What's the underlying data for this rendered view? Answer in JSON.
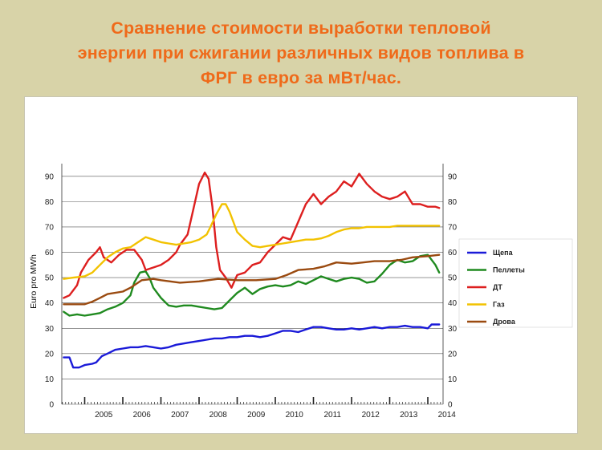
{
  "slide": {
    "title_lines": [
      "Сравнение стоимости выработки тепловой",
      "энергии при сжигании различных видов топлива в",
      "ФРГ в евро за мВт/час."
    ]
  },
  "chart_data": {
    "type": "line",
    "title": "",
    "xlabel": "",
    "ylabel": "Euro pro MWh",
    "xlim": [
      2004.4,
      2014.4
    ],
    "ylim": [
      0,
      95
    ],
    "yticks": [
      0,
      10,
      20,
      30,
      40,
      50,
      60,
      70,
      80,
      90
    ],
    "xtick_labels": [
      "2005",
      "2006",
      "2007",
      "2008",
      "2009",
      "2010",
      "2011",
      "2012",
      "2013",
      "2014"
    ],
    "grid": "horizontal",
    "legend_position": "right",
    "series": [
      {
        "name": "Щепа",
        "color": "#1a1ad8",
        "x": [
          2004.45,
          2004.6,
          2004.7,
          2004.85,
          2005.0,
          2005.2,
          2005.3,
          2005.45,
          2005.6,
          2005.8,
          2006.0,
          2006.2,
          2006.4,
          2006.6,
          2006.8,
          2007.0,
          2007.2,
          2007.4,
          2007.6,
          2007.8,
          2008.0,
          2008.2,
          2008.4,
          2008.6,
          2008.8,
          2009.0,
          2009.2,
          2009.4,
          2009.6,
          2009.8,
          2010.0,
          2010.2,
          2010.4,
          2010.6,
          2010.8,
          2011.0,
          2011.2,
          2011.4,
          2011.6,
          2011.8,
          2012.0,
          2012.2,
          2012.4,
          2012.6,
          2012.8,
          2013.0,
          2013.2,
          2013.4,
          2013.6,
          2013.8,
          2014.0,
          2014.1,
          2014.3
        ],
        "values": [
          18.5,
          18.5,
          14.5,
          14.5,
          15.5,
          16.0,
          16.5,
          19.0,
          20.0,
          21.5,
          22.0,
          22.5,
          22.5,
          23.0,
          22.5,
          22.0,
          22.5,
          23.5,
          24.0,
          24.5,
          25.0,
          25.5,
          26.0,
          26.0,
          26.5,
          26.5,
          27.0,
          27.0,
          26.5,
          27.0,
          28.0,
          29.0,
          29.0,
          28.5,
          29.5,
          30.5,
          30.5,
          30.0,
          29.5,
          29.5,
          30.0,
          29.5,
          30.0,
          30.5,
          30.0,
          30.5,
          30.5,
          31.0,
          30.5,
          30.5,
          30.0,
          31.5,
          31.5
        ]
      },
      {
        "name": "Пеллеты",
        "color": "#1f8a1f",
        "x": [
          2004.45,
          2004.6,
          2004.8,
          2005.0,
          2005.2,
          2005.4,
          2005.6,
          2005.8,
          2006.0,
          2006.2,
          2006.3,
          2006.45,
          2006.6,
          2006.7,
          2006.8,
          2007.0,
          2007.2,
          2007.4,
          2007.6,
          2007.8,
          2008.0,
          2008.2,
          2008.4,
          2008.6,
          2008.8,
          2009.0,
          2009.2,
          2009.4,
          2009.6,
          2009.8,
          2010.0,
          2010.2,
          2010.4,
          2010.6,
          2010.8,
          2011.0,
          2011.2,
          2011.4,
          2011.6,
          2011.8,
          2012.0,
          2012.2,
          2012.4,
          2012.6,
          2012.8,
          2013.0,
          2013.2,
          2013.4,
          2013.6,
          2013.8,
          2014.0,
          2014.2,
          2014.3
        ],
        "values": [
          36.5,
          35.0,
          35.5,
          35.0,
          35.5,
          36.0,
          37.5,
          38.5,
          40.0,
          43.0,
          48.0,
          52.0,
          52.5,
          50.0,
          46.0,
          42.0,
          39.0,
          38.5,
          39.0,
          39.0,
          38.5,
          38.0,
          37.5,
          38.0,
          41.0,
          44.0,
          46.0,
          43.5,
          45.5,
          46.5,
          47.0,
          46.5,
          47.0,
          48.5,
          47.5,
          49.0,
          50.5,
          49.5,
          48.5,
          49.5,
          50.0,
          49.5,
          48.0,
          48.5,
          51.5,
          55.0,
          57.0,
          56.0,
          56.5,
          58.5,
          59.0,
          55.0,
          52.0
        ]
      },
      {
        "name": "ДТ",
        "color": "#dd1f1f",
        "x": [
          2004.45,
          2004.6,
          2004.8,
          2004.9,
          2005.1,
          2005.3,
          2005.4,
          2005.5,
          2005.7,
          2005.9,
          2006.1,
          2006.3,
          2006.5,
          2006.6,
          2006.8,
          2007.0,
          2007.2,
          2007.4,
          2007.5,
          2007.7,
          2007.85,
          2008.0,
          2008.15,
          2008.25,
          2008.35,
          2008.45,
          2008.55,
          2008.7,
          2008.85,
          2009.0,
          2009.2,
          2009.4,
          2009.6,
          2009.8,
          2010.0,
          2010.2,
          2010.4,
          2010.6,
          2010.8,
          2011.0,
          2011.2,
          2011.4,
          2011.6,
          2011.8,
          2012.0,
          2012.2,
          2012.4,
          2012.6,
          2012.8,
          2013.0,
          2013.2,
          2013.4,
          2013.6,
          2013.8,
          2014.0,
          2014.2,
          2014.3
        ],
        "values": [
          42.0,
          43.0,
          47.0,
          52.0,
          57.0,
          60.0,
          62.0,
          58.0,
          56.0,
          59.0,
          61.0,
          61.0,
          57.0,
          53.0,
          54.0,
          55.0,
          57.0,
          60.0,
          63.0,
          67.0,
          77.0,
          87.0,
          91.5,
          89.0,
          78.0,
          62.0,
          53.0,
          50.0,
          46.0,
          51.0,
          52.0,
          55.0,
          56.0,
          60.0,
          63.0,
          66.0,
          65.0,
          72.0,
          79.0,
          83.0,
          79.0,
          82.0,
          84.0,
          88.0,
          86.0,
          91.0,
          87.0,
          84.0,
          82.0,
          81.0,
          82.0,
          84.0,
          79.0,
          79.0,
          78.0,
          78.0,
          77.5
        ]
      },
      {
        "name": "Газ",
        "color": "#f2c200",
        "x": [
          2004.45,
          2004.7,
          2005.0,
          2005.2,
          2005.4,
          2005.6,
          2005.8,
          2006.0,
          2006.2,
          2006.4,
          2006.6,
          2006.8,
          2007.0,
          2007.2,
          2007.4,
          2007.6,
          2007.8,
          2008.0,
          2008.2,
          2008.3,
          2008.45,
          2008.6,
          2008.7,
          2008.8,
          2009.0,
          2009.2,
          2009.4,
          2009.6,
          2009.8,
          2010.0,
          2010.2,
          2010.4,
          2010.6,
          2010.8,
          2011.0,
          2011.2,
          2011.4,
          2011.6,
          2011.8,
          2012.0,
          2012.2,
          2012.4,
          2012.6,
          2012.8,
          2013.0,
          2013.2,
          2013.4,
          2013.6,
          2013.8,
          2014.0,
          2014.3
        ],
        "values": [
          49.5,
          50.0,
          50.5,
          52.0,
          55.0,
          58.0,
          60.0,
          61.5,
          62.0,
          64.0,
          66.0,
          65.0,
          64.0,
          63.5,
          63.0,
          63.5,
          64.0,
          65.0,
          67.0,
          70.0,
          75.0,
          79.0,
          79.0,
          76.0,
          68.0,
          65.0,
          62.5,
          62.0,
          62.5,
          63.0,
          63.5,
          64.0,
          64.5,
          65.0,
          65.0,
          65.5,
          66.5,
          68.0,
          69.0,
          69.5,
          69.5,
          70.0,
          70.0,
          70.0,
          70.0,
          70.5,
          70.5,
          70.5,
          70.5,
          70.5,
          70.5
        ]
      },
      {
        "name": "Дрова",
        "color": "#9a4a10",
        "x": [
          2004.45,
          2004.8,
          2005.0,
          2005.2,
          2005.4,
          2005.6,
          2006.0,
          2006.2,
          2006.5,
          2006.8,
          2007.0,
          2007.5,
          2008.0,
          2008.5,
          2009.0,
          2009.5,
          2010.0,
          2010.3,
          2010.6,
          2011.0,
          2011.3,
          2011.6,
          2012.0,
          2012.3,
          2012.6,
          2013.0,
          2013.3,
          2013.6,
          2014.0,
          2014.3
        ],
        "values": [
          39.5,
          39.5,
          39.5,
          40.5,
          42.0,
          43.5,
          44.5,
          46.0,
          49.0,
          49.5,
          49.0,
          48.0,
          48.5,
          49.5,
          49.0,
          49.0,
          49.5,
          51.0,
          53.0,
          53.5,
          54.5,
          56.0,
          55.5,
          56.0,
          56.5,
          56.5,
          57.0,
          58.0,
          58.5,
          59.0
        ]
      }
    ]
  }
}
